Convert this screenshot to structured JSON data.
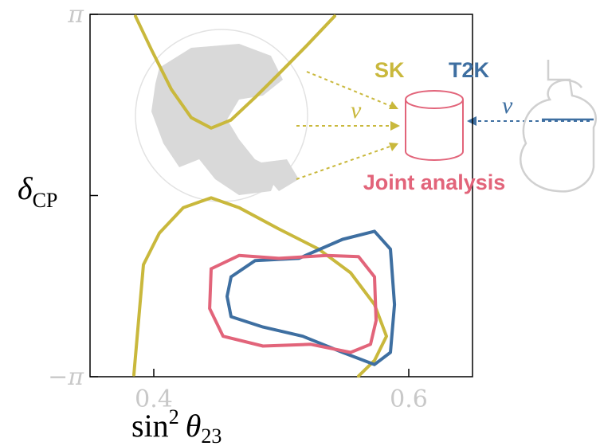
{
  "chart_data": {
    "type": "contour",
    "xlabel": {
      "text": "sin",
      "superscript": "2",
      "symbol": "θ",
      "subscript": "23"
    },
    "ylabel": {
      "symbol": "δ",
      "subscript": "CP"
    },
    "xlim": [
      0.35,
      0.65
    ],
    "xticks": [
      0.4,
      0.6
    ],
    "ylim": [
      -3.1416,
      3.1416
    ],
    "yticks": [
      {
        "value": -3.1416,
        "label": "−π"
      },
      {
        "value": 0,
        "label": null
      },
      {
        "value": 3.1416,
        "label": "π"
      }
    ],
    "series": [
      {
        "name": "SK",
        "color": "#c9b83c",
        "pieces": [
          {
            "x": [
              0.3856,
              0.3981,
              0.4138,
              0.4294,
              0.445,
              0.4606,
              0.4794,
              0.4981,
              0.52,
              0.5419
            ],
            "y": [
              3.11,
              2.53,
              1.84,
              1.35,
              1.17,
              1.31,
              1.7,
              2.11,
              2.6,
              3.11
            ]
          },
          {
            "x": [
              0.3844,
              0.3919,
              0.4044,
              0.4231,
              0.445,
              0.4669,
              0.4981,
              0.5294,
              0.5544,
              0.5731,
              0.5825,
              0.5731,
              0.5606
            ],
            "y": [
              -3.11,
              -1.2,
              -0.65,
              -0.21,
              -0.04,
              -0.21,
              -0.58,
              -0.93,
              -1.34,
              -1.89,
              -2.44,
              -2.86,
              -3.13
            ]
          }
        ]
      },
      {
        "name": "T2K",
        "color": "#3e6fa1",
        "pieces": [
          {
            "x": [
              0.4606,
              0.4794,
              0.5138,
              0.5481,
              0.5731,
              0.5856,
              0.5888,
              0.5856,
              0.5731,
              0.5481,
              0.5169,
              0.4856,
              0.4606,
              0.4575,
              0.4606
            ],
            "y": [
              -1.41,
              -1.13,
              -1.09,
              -0.76,
              -0.62,
              -0.93,
              -1.89,
              -2.72,
              -2.93,
              -2.72,
              -2.44,
              -2.28,
              -2.1,
              -1.75,
              -1.41
            ]
          }
        ]
      },
      {
        "name": "Joint analysis",
        "color": "#e2647a",
        "pieces": [
          {
            "x": [
              0.445,
              0.4669,
              0.4981,
              0.5356,
              0.5606,
              0.5731,
              0.5744,
              0.57,
              0.5544,
              0.5231,
              0.4856,
              0.4544,
              0.4438,
              0.445
            ],
            "y": [
              -1.27,
              -1.04,
              -1.09,
              -1.04,
              -1.06,
              -1.41,
              -2.17,
              -2.58,
              -2.72,
              -2.58,
              -2.61,
              -2.44,
              -1.96,
              -1.27
            ]
          }
        ]
      }
    ],
    "annotations": [
      "ν",
      "ν"
    ]
  }
}
